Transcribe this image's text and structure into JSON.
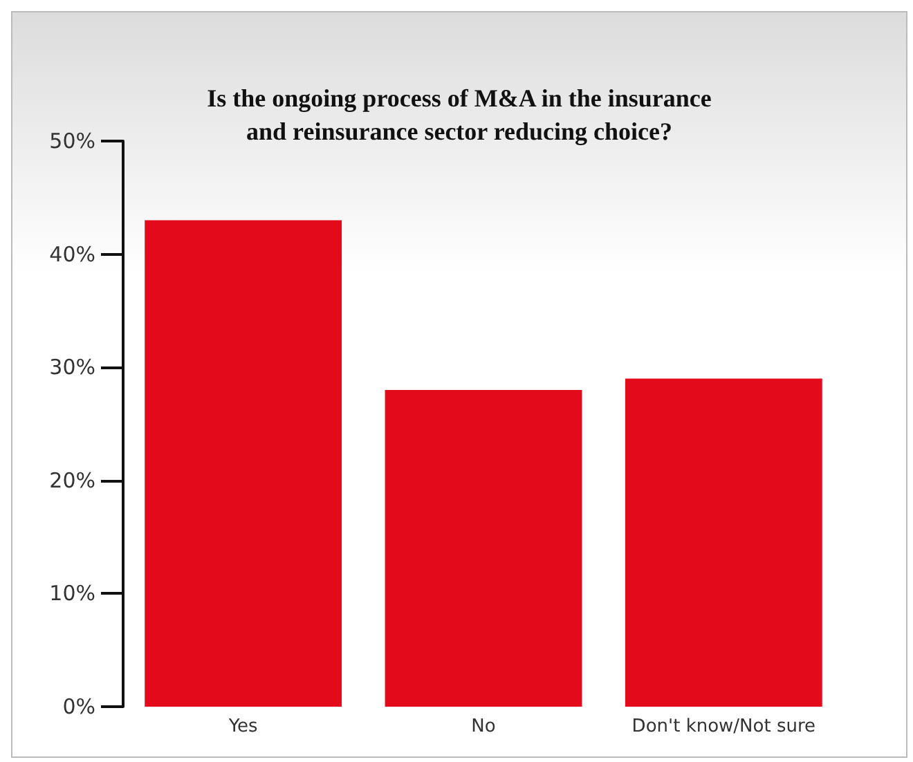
{
  "chart_data": {
    "type": "bar",
    "title": "Is the ongoing process of M&A in the insurance\nand reinsurance sector reducing choice?",
    "categories": [
      "Yes",
      "No",
      "Don't know/Not sure"
    ],
    "values": [
      43,
      28,
      29
    ],
    "color": "#e30b1b",
    "ylim": [
      0,
      50
    ],
    "yticks": [
      {
        "value": 0,
        "label": "0%"
      },
      {
        "value": 10,
        "label": "10%"
      },
      {
        "value": 20,
        "label": "20%"
      },
      {
        "value": 30,
        "label": "30%"
      },
      {
        "value": 40,
        "label": "40%"
      },
      {
        "value": 50,
        "label": "50%"
      }
    ],
    "grid": false
  }
}
